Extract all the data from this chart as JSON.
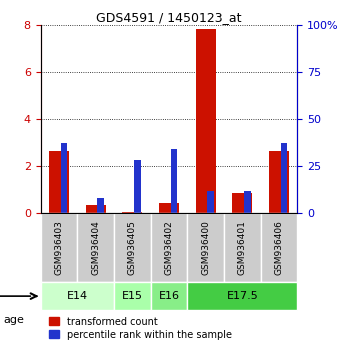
{
  "title": "GDS4591 / 1450123_at",
  "samples": [
    "GSM936403",
    "GSM936404",
    "GSM936405",
    "GSM936402",
    "GSM936400",
    "GSM936401",
    "GSM936406"
  ],
  "transformed_count": [
    2.65,
    0.35,
    0.05,
    0.45,
    7.8,
    0.85,
    2.65
  ],
  "percentile_rank_scaled": [
    0.37,
    0.08,
    0.28,
    0.34,
    0.12,
    0.12,
    0.37
  ],
  "age_groups": [
    {
      "label": "E14",
      "span": [
        0,
        2
      ],
      "color": "#ccffcc"
    },
    {
      "label": "E15",
      "span": [
        2,
        3
      ],
      "color": "#aaffaa"
    },
    {
      "label": "E16",
      "span": [
        3,
        4
      ],
      "color": "#88ee88"
    },
    {
      "label": "E17.5",
      "span": [
        4,
        7
      ],
      "color": "#44cc44"
    }
  ],
  "ylim_left": [
    0,
    8
  ],
  "ylim_right": [
    0,
    100
  ],
  "yticks_left": [
    0,
    2,
    4,
    6,
    8
  ],
  "yticks_right": [
    0,
    25,
    50,
    75,
    100
  ],
  "left_tick_color": "#cc0000",
  "right_tick_color": "#0000cc",
  "bar_color_red": "#cc1100",
  "bar_color_blue": "#2233cc",
  "sample_box_color": "#cccccc",
  "age_label": "age",
  "legend_red": "transformed count",
  "legend_blue": "percentile rank within the sample",
  "red_bar_width": 0.55,
  "blue_bar_width": 0.18
}
